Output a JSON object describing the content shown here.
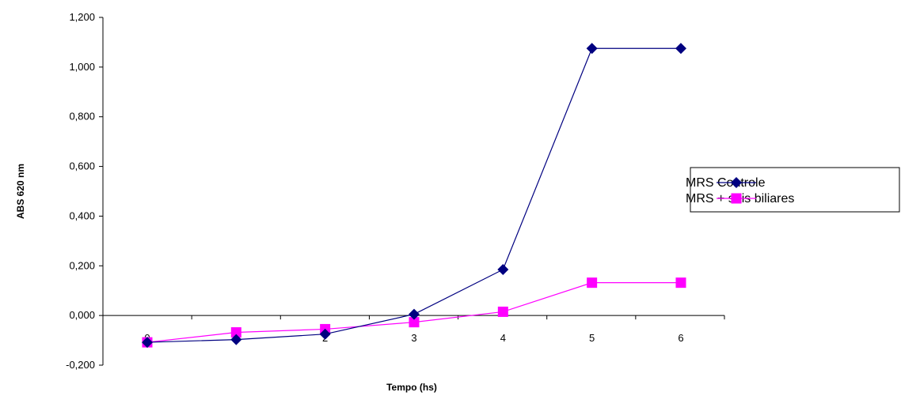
{
  "chart_data": {
    "type": "line",
    "title": "",
    "xlabel": "Tempo (hs)",
    "ylabel": "ABS 620 nm",
    "categories": [
      "0",
      "1",
      "2",
      "3",
      "4",
      "5",
      "6"
    ],
    "ylim": [
      -0.2,
      1.2
    ],
    "yticks": [
      "-0,200",
      "0,000",
      "0,200",
      "0,400",
      "0,600",
      "0,800",
      "1,000",
      "1,200"
    ],
    "ytick_values": [
      -0.2,
      0,
      0.2,
      0.4,
      0.6,
      0.8,
      1.0,
      1.2
    ],
    "grid": false,
    "legend_position": "right",
    "series": [
      {
        "name": "MRS Controle",
        "color": "#000080",
        "marker": "diamond",
        "values": [
          -0.108,
          -0.097,
          -0.075,
          0.005,
          0.185,
          1.075,
          1.075
        ]
      },
      {
        "name": "MRS + sais biliares",
        "color": "#FF00FF",
        "marker": "square",
        "values": [
          -0.108,
          -0.068,
          -0.055,
          -0.027,
          0.015,
          0.132,
          0.132
        ]
      }
    ]
  }
}
